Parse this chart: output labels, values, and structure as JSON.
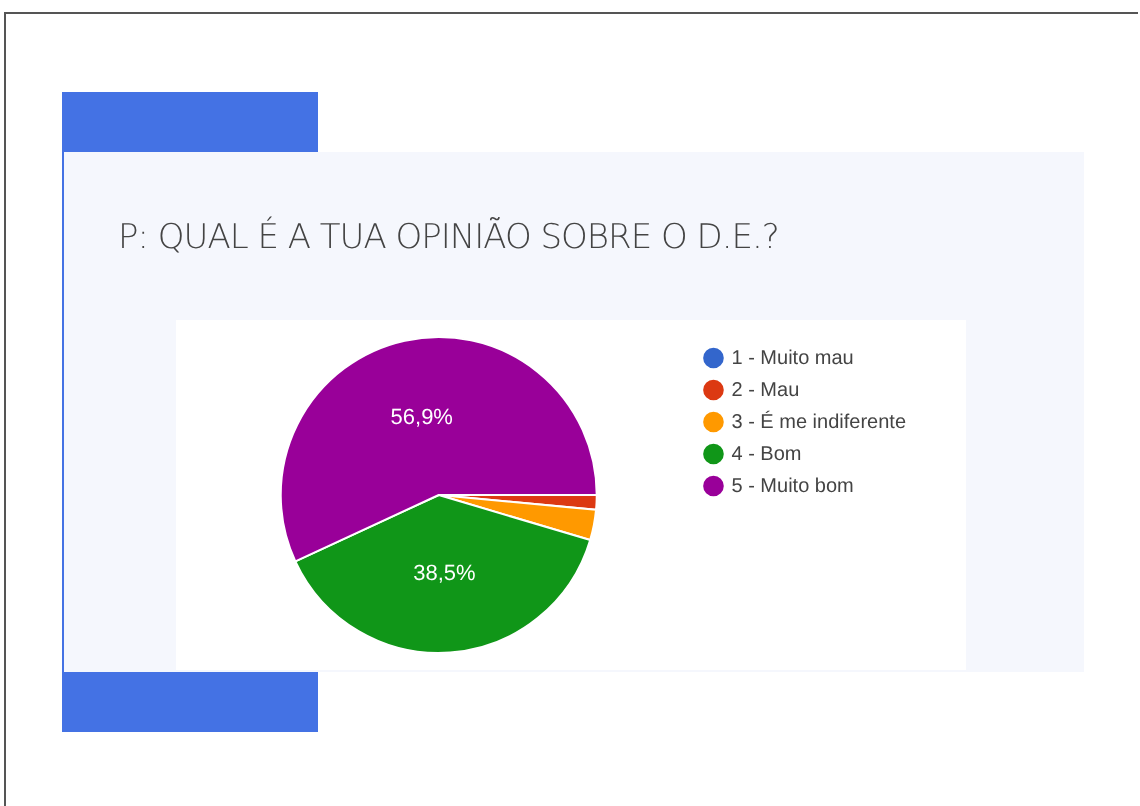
{
  "chart_data": {
    "type": "pie",
    "title": "P: QUAL É A TUA OPINIÃO SOBRE O D.E.?",
    "categories": [
      "1 - Muito mau",
      "2 - Mau",
      "3 - É me indiferente",
      "4 - Bom",
      "5 - Muito bom"
    ],
    "values": [
      0,
      1.5,
      3.1,
      38.5,
      56.9
    ],
    "colors": [
      "#3366cc",
      "#dc3912",
      "#ff9900",
      "#109618",
      "#990099"
    ],
    "value_labels": [
      null,
      null,
      null,
      "38,5%",
      "56,9%"
    ],
    "legend": "right"
  }
}
